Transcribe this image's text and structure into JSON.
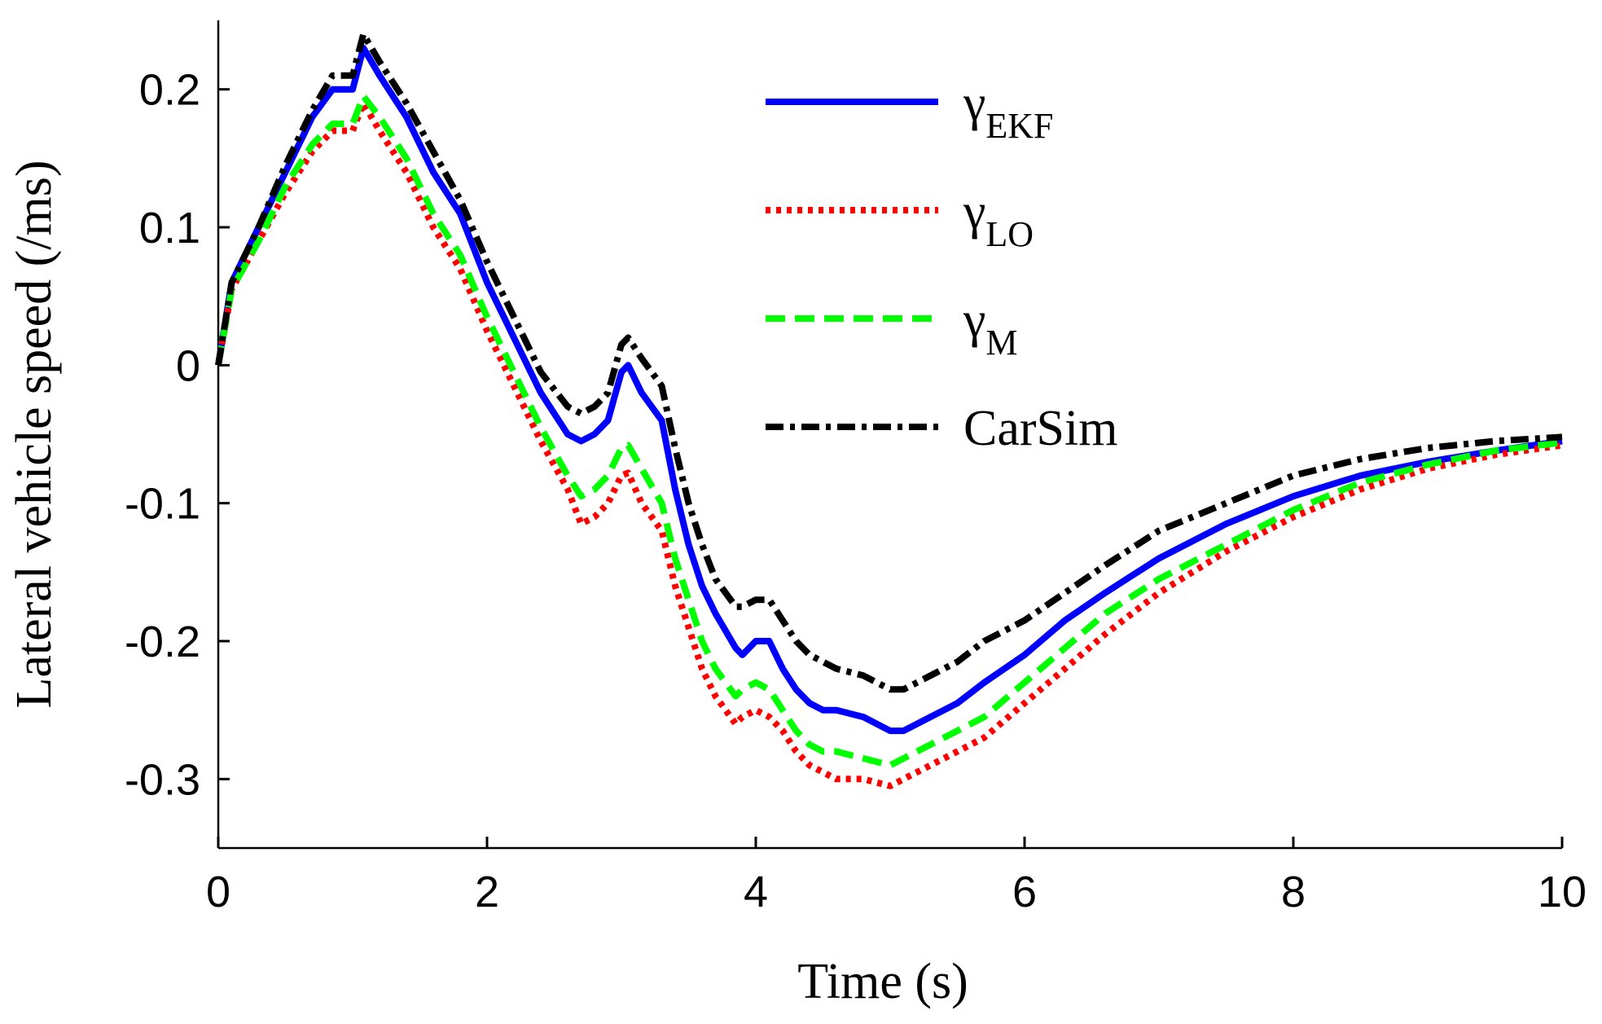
{
  "chart_data": {
    "type": "line",
    "title": "",
    "xlabel": "Time (s)",
    "ylabel": "Lateral vehicle speed (/ms)",
    "xlim": [
      0,
      10
    ],
    "ylim": [
      -0.35,
      0.25
    ],
    "xticks": [
      0,
      2,
      4,
      6,
      8,
      10
    ],
    "xtick_labels": [
      "0",
      "2",
      "4",
      "6",
      "8",
      "10"
    ],
    "yticks": [
      0.2,
      0.1,
      0,
      -0.1,
      -0.2,
      -0.3
    ],
    "ytick_labels": [
      "0.2",
      "0.1",
      "0",
      "-0.1",
      "-0.2",
      "-0.3"
    ],
    "grid": false,
    "legend_position": "top-right",
    "series": [
      {
        "name": "γEKF",
        "label_main": "γ",
        "label_sub": "EKF",
        "color": "#0000ff",
        "style": "solid",
        "x": [
          0,
          0.1,
          0.3,
          0.5,
          0.7,
          0.85,
          1.0,
          1.08,
          1.2,
          1.4,
          1.6,
          1.8,
          2.0,
          2.2,
          2.4,
          2.6,
          2.7,
          2.8,
          2.9,
          3.0,
          3.05,
          3.15,
          3.3,
          3.4,
          3.5,
          3.6,
          3.7,
          3.85,
          3.9,
          4.0,
          4.1,
          4.2,
          4.3,
          4.4,
          4.5,
          4.6,
          4.8,
          5.0,
          5.1,
          5.3,
          5.5,
          5.7,
          6.0,
          6.3,
          6.6,
          7.0,
          7.5,
          8.0,
          8.5,
          9.0,
          9.5,
          10.0
        ],
        "values": [
          0,
          0.06,
          0.1,
          0.14,
          0.18,
          0.2,
          0.2,
          0.23,
          0.21,
          0.18,
          0.14,
          0.11,
          0.06,
          0.02,
          -0.02,
          -0.05,
          -0.055,
          -0.05,
          -0.04,
          -0.005,
          0.0,
          -0.02,
          -0.04,
          -0.09,
          -0.13,
          -0.16,
          -0.18,
          -0.205,
          -0.21,
          -0.2,
          -0.2,
          -0.22,
          -0.235,
          -0.245,
          -0.25,
          -0.25,
          -0.255,
          -0.265,
          -0.265,
          -0.255,
          -0.245,
          -0.23,
          -0.21,
          -0.185,
          -0.165,
          -0.14,
          -0.115,
          -0.095,
          -0.08,
          -0.07,
          -0.062,
          -0.055
        ]
      },
      {
        "name": "γLO",
        "label_main": "γ",
        "label_sub": "LO",
        "color": "#ff0000",
        "style": "dotted",
        "x": [
          0,
          0.1,
          0.3,
          0.5,
          0.7,
          0.85,
          1.0,
          1.08,
          1.2,
          1.4,
          1.6,
          1.8,
          2.0,
          2.2,
          2.4,
          2.6,
          2.7,
          2.8,
          2.9,
          3.0,
          3.05,
          3.15,
          3.3,
          3.4,
          3.5,
          3.6,
          3.7,
          3.85,
          3.9,
          4.0,
          4.1,
          4.2,
          4.3,
          4.4,
          4.5,
          4.6,
          4.8,
          5.0,
          5.1,
          5.3,
          5.5,
          5.7,
          6.0,
          6.3,
          6.6,
          7.0,
          7.5,
          8.0,
          8.5,
          9.0,
          9.5,
          10.0
        ],
        "values": [
          0,
          0.055,
          0.09,
          0.125,
          0.155,
          0.17,
          0.17,
          0.19,
          0.17,
          0.14,
          0.1,
          0.07,
          0.025,
          -0.015,
          -0.055,
          -0.09,
          -0.115,
          -0.11,
          -0.1,
          -0.08,
          -0.078,
          -0.1,
          -0.12,
          -0.16,
          -0.19,
          -0.22,
          -0.24,
          -0.26,
          -0.255,
          -0.25,
          -0.255,
          -0.265,
          -0.28,
          -0.29,
          -0.295,
          -0.3,
          -0.3,
          -0.305,
          -0.3,
          -0.29,
          -0.28,
          -0.27,
          -0.245,
          -0.22,
          -0.195,
          -0.165,
          -0.135,
          -0.11,
          -0.09,
          -0.075,
          -0.065,
          -0.058
        ]
      },
      {
        "name": "γM",
        "label_main": "γ",
        "label_sub": "M",
        "color": "#00ff00",
        "style": "dashed",
        "x": [
          0,
          0.1,
          0.3,
          0.5,
          0.7,
          0.85,
          1.0,
          1.08,
          1.2,
          1.4,
          1.6,
          1.8,
          2.0,
          2.2,
          2.4,
          2.6,
          2.7,
          2.8,
          2.9,
          3.0,
          3.05,
          3.15,
          3.3,
          3.4,
          3.5,
          3.6,
          3.7,
          3.85,
          3.9,
          4.0,
          4.1,
          4.2,
          4.3,
          4.4,
          4.5,
          4.6,
          4.8,
          5.0,
          5.1,
          5.3,
          5.5,
          5.7,
          6.0,
          6.3,
          6.6,
          7.0,
          7.5,
          8.0,
          8.5,
          9.0,
          9.5,
          10.0
        ],
        "values": [
          0,
          0.055,
          0.09,
          0.13,
          0.16,
          0.175,
          0.175,
          0.195,
          0.18,
          0.15,
          0.11,
          0.08,
          0.035,
          -0.005,
          -0.045,
          -0.08,
          -0.095,
          -0.09,
          -0.08,
          -0.06,
          -0.058,
          -0.075,
          -0.1,
          -0.14,
          -0.17,
          -0.2,
          -0.22,
          -0.24,
          -0.235,
          -0.23,
          -0.235,
          -0.25,
          -0.265,
          -0.275,
          -0.28,
          -0.28,
          -0.285,
          -0.29,
          -0.285,
          -0.275,
          -0.265,
          -0.255,
          -0.23,
          -0.205,
          -0.18,
          -0.155,
          -0.13,
          -0.105,
          -0.085,
          -0.072,
          -0.062,
          -0.056
        ]
      },
      {
        "name": "CarSim",
        "label_main": "CarSim",
        "label_sub": "",
        "color": "#000000",
        "style": "dashdot",
        "x": [
          0,
          0.1,
          0.3,
          0.5,
          0.7,
          0.85,
          1.0,
          1.08,
          1.2,
          1.4,
          1.6,
          1.8,
          2.0,
          2.2,
          2.4,
          2.6,
          2.7,
          2.8,
          2.9,
          3.0,
          3.05,
          3.15,
          3.3,
          3.4,
          3.5,
          3.6,
          3.7,
          3.85,
          3.9,
          4.0,
          4.1,
          4.2,
          4.3,
          4.4,
          4.5,
          4.6,
          4.8,
          5.0,
          5.1,
          5.3,
          5.5,
          5.7,
          6.0,
          6.3,
          6.6,
          7.0,
          7.5,
          8.0,
          8.5,
          9.0,
          9.5,
          10.0
        ],
        "values": [
          0,
          0.06,
          0.1,
          0.145,
          0.185,
          0.21,
          0.21,
          0.24,
          0.22,
          0.19,
          0.155,
          0.12,
          0.075,
          0.035,
          -0.005,
          -0.03,
          -0.035,
          -0.03,
          -0.02,
          0.015,
          0.02,
          0.005,
          -0.015,
          -0.06,
          -0.1,
          -0.13,
          -0.155,
          -0.175,
          -0.175,
          -0.17,
          -0.17,
          -0.185,
          -0.2,
          -0.21,
          -0.215,
          -0.22,
          -0.225,
          -0.235,
          -0.235,
          -0.225,
          -0.215,
          -0.2,
          -0.185,
          -0.165,
          -0.145,
          -0.12,
          -0.1,
          -0.08,
          -0.068,
          -0.06,
          -0.055,
          -0.052
        ]
      }
    ]
  }
}
